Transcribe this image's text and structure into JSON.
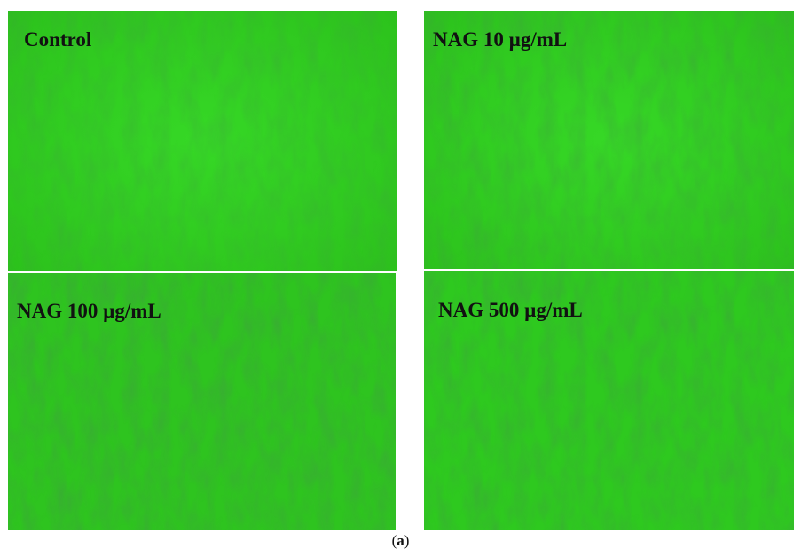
{
  "panels": [
    {
      "label": "Control"
    },
    {
      "label": "NAG 10 µg/mL"
    },
    {
      "label": "NAG 100 µg/mL"
    },
    {
      "label": "NAG 500 µg/mL"
    }
  ],
  "caption": [
    "(",
    "a",
    ")"
  ]
}
